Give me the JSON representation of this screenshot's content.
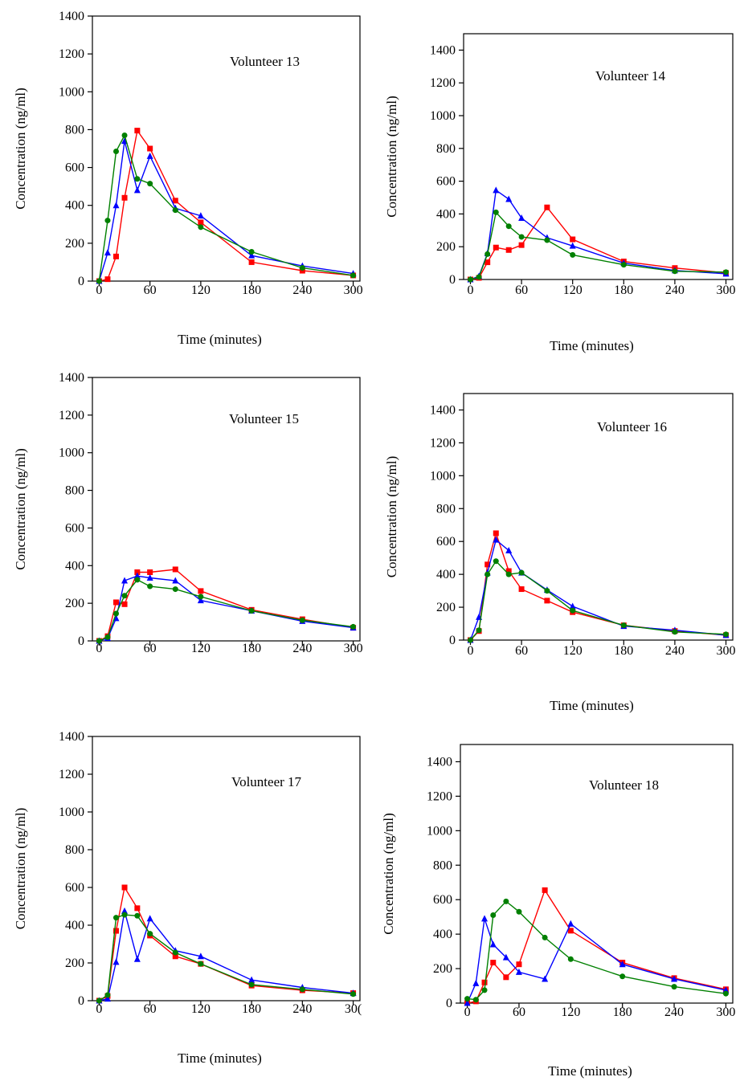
{
  "chart_data": [
    {
      "type": "line",
      "title": "Volunteer 13",
      "xlabel": "Time (minutes)",
      "ylabel": "Concentration (ng/ml)",
      "x_ticks": [
        "0",
        "60",
        "120",
        "180",
        "240",
        "300"
      ],
      "y_ticks": [
        "0",
        "200",
        "400",
        "600",
        "800",
        "1000",
        "1200",
        "1400"
      ],
      "xlim": [
        -8,
        308
      ],
      "ylim": [
        0,
        1400
      ],
      "series": [
        {
          "color": "#ff0000",
          "marker": "square",
          "x": [
            0,
            10,
            20,
            30,
            45,
            60,
            90,
            120,
            180,
            240,
            300
          ],
          "y": [
            0,
            10,
            130,
            440,
            795,
            700,
            425,
            310,
            100,
            55,
            30
          ]
        },
        {
          "color": "#0000ff",
          "marker": "triangle",
          "x": [
            0,
            10,
            20,
            30,
            45,
            60,
            90,
            120,
            180,
            240,
            300
          ],
          "y": [
            0,
            150,
            400,
            740,
            480,
            660,
            385,
            345,
            135,
            80,
            40
          ]
        },
        {
          "color": "#008000",
          "marker": "circle",
          "x": [
            0,
            10,
            20,
            30,
            45,
            60,
            90,
            120,
            180,
            240,
            300
          ],
          "y": [
            0,
            320,
            685,
            770,
            540,
            515,
            375,
            285,
            155,
            70,
            30
          ]
        }
      ]
    },
    {
      "type": "line",
      "title": "Volunteer 14",
      "xlabel": "Time (minutes)",
      "ylabel": "Concentration (ng/ml)",
      "x_ticks": [
        "0",
        "60",
        "120",
        "180",
        "240",
        "300"
      ],
      "y_ticks": [
        "0",
        "200",
        "400",
        "600",
        "800",
        "1000",
        "1200",
        "1400"
      ],
      "xlim": [
        -8,
        308
      ],
      "ylim": [
        0,
        1500
      ],
      "series": [
        {
          "color": "#ff0000",
          "marker": "square",
          "x": [
            0,
            10,
            20,
            30,
            45,
            60,
            90,
            120,
            180,
            240,
            300
          ],
          "y": [
            0,
            10,
            105,
            195,
            180,
            210,
            440,
            245,
            110,
            70,
            40
          ]
        },
        {
          "color": "#0000ff",
          "marker": "triangle",
          "x": [
            0,
            10,
            20,
            30,
            45,
            60,
            90,
            120,
            180,
            240,
            300
          ],
          "y": [
            0,
            20,
            160,
            545,
            490,
            375,
            255,
            205,
            100,
            55,
            35
          ]
        },
        {
          "color": "#008000",
          "marker": "circle",
          "x": [
            0,
            10,
            20,
            30,
            45,
            60,
            90,
            120,
            180,
            240,
            300
          ],
          "y": [
            0,
            15,
            155,
            410,
            325,
            260,
            240,
            150,
            90,
            50,
            45
          ]
        }
      ]
    },
    {
      "type": "line",
      "title": "Volunteer 15",
      "xlabel": "",
      "ylabel": "Concentration (ng/ml)",
      "x_ticks": [
        "0",
        "60",
        "120",
        "180",
        "240",
        "300"
      ],
      "y_ticks": [
        "0",
        "200",
        "400",
        "600",
        "800",
        "1000",
        "1200",
        "1400"
      ],
      "xlim": [
        -8,
        308
      ],
      "ylim": [
        0,
        1400
      ],
      "series": [
        {
          "color": "#ff0000",
          "marker": "square",
          "x": [
            0,
            10,
            20,
            30,
            45,
            60,
            90,
            120,
            180,
            240,
            300
          ],
          "y": [
            0,
            25,
            205,
            195,
            365,
            365,
            380,
            265,
            165,
            115,
            70
          ]
        },
        {
          "color": "#0000ff",
          "marker": "triangle",
          "x": [
            0,
            10,
            20,
            30,
            45,
            60,
            90,
            120,
            180,
            240,
            300
          ],
          "y": [
            0,
            15,
            120,
            320,
            345,
            335,
            320,
            215,
            160,
            105,
            70
          ]
        },
        {
          "color": "#008000",
          "marker": "circle",
          "x": [
            0,
            10,
            20,
            30,
            45,
            60,
            90,
            120,
            180,
            240,
            300
          ],
          "y": [
            0,
            20,
            145,
            240,
            325,
            290,
            275,
            235,
            160,
            110,
            75
          ]
        }
      ]
    },
    {
      "type": "line",
      "title": "Volunteer 16",
      "xlabel": "Time (minutes)",
      "ylabel": "Concentration (ng/ml)",
      "x_ticks": [
        "0",
        "60",
        "120",
        "180",
        "240",
        "300"
      ],
      "y_ticks": [
        "0",
        "200",
        "400",
        "600",
        "800",
        "1000",
        "1200",
        "1400"
      ],
      "xlim": [
        -8,
        308
      ],
      "ylim": [
        0,
        1500
      ],
      "series": [
        {
          "color": "#ff0000",
          "marker": "square",
          "x": [
            0,
            10,
            20,
            30,
            45,
            60,
            90,
            120,
            180,
            240,
            300
          ],
          "y": [
            0,
            55,
            460,
            650,
            420,
            310,
            240,
            170,
            90,
            55,
            30
          ]
        },
        {
          "color": "#0000ff",
          "marker": "triangle",
          "x": [
            0,
            10,
            20,
            30,
            45,
            60,
            90,
            120,
            180,
            240,
            300
          ],
          "y": [
            0,
            140,
            410,
            610,
            545,
            410,
            305,
            205,
            85,
            60,
            30
          ]
        },
        {
          "color": "#008000",
          "marker": "circle",
          "x": [
            0,
            10,
            20,
            30,
            45,
            60,
            90,
            120,
            180,
            240,
            300
          ],
          "y": [
            0,
            60,
            400,
            480,
            400,
            410,
            300,
            180,
            90,
            50,
            35
          ]
        }
      ]
    },
    {
      "type": "line",
      "title": "Volunteer 17",
      "xlabel": "Time (minutes)",
      "ylabel": "Concentration (ng/ml)",
      "x_ticks": [
        "0",
        "60",
        "120",
        "180",
        "240",
        "30("
      ],
      "y_ticks": [
        "0",
        "200",
        "400",
        "600",
        "800",
        "1000",
        "1200",
        "1400"
      ],
      "xlim": [
        -8,
        308
      ],
      "ylim": [
        0,
        1400
      ],
      "series": [
        {
          "color": "#ff0000",
          "marker": "square",
          "x": [
            0,
            10,
            20,
            30,
            45,
            60,
            90,
            120,
            180,
            240,
            300
          ],
          "y": [
            0,
            25,
            370,
            600,
            490,
            345,
            235,
            195,
            80,
            55,
            40
          ]
        },
        {
          "color": "#0000ff",
          "marker": "triangle",
          "x": [
            0,
            10,
            20,
            30,
            45,
            60,
            90,
            120,
            180,
            240,
            300
          ],
          "y": [
            0,
            10,
            205,
            475,
            220,
            435,
            265,
            235,
            110,
            70,
            40
          ]
        },
        {
          "color": "#008000",
          "marker": "circle",
          "x": [
            0,
            10,
            20,
            30,
            45,
            60,
            90,
            120,
            180,
            240,
            300
          ],
          "y": [
            0,
            30,
            440,
            455,
            450,
            355,
            255,
            195,
            85,
            60,
            35
          ]
        }
      ]
    },
    {
      "type": "line",
      "title": "Volunteer 18",
      "xlabel": "Time (minutes)",
      "ylabel": "Concentration (ng/ml)",
      "x_ticks": [
        "0",
        "60",
        "120",
        "180",
        "240",
        "300"
      ],
      "y_ticks": [
        "0",
        "200",
        "400",
        "600",
        "800",
        "1000",
        "1200",
        "1400"
      ],
      "xlim": [
        -8,
        308
      ],
      "ylim": [
        0,
        1500
      ],
      "series": [
        {
          "color": "#ff0000",
          "marker": "square",
          "x": [
            0,
            10,
            20,
            30,
            45,
            60,
            90,
            120,
            180,
            240,
            300
          ],
          "y": [
            0,
            10,
            120,
            235,
            150,
            225,
            655,
            420,
            235,
            145,
            80
          ]
        },
        {
          "color": "#0000ff",
          "marker": "triangle",
          "x": [
            0,
            10,
            20,
            30,
            45,
            60,
            90,
            120,
            180,
            240,
            300
          ],
          "y": [
            0,
            115,
            490,
            340,
            265,
            180,
            140,
            460,
            225,
            140,
            75
          ]
        },
        {
          "color": "#008000",
          "marker": "circle",
          "x": [
            0,
            10,
            20,
            30,
            45,
            60,
            90,
            120,
            180,
            240,
            300
          ],
          "y": [
            25,
            20,
            75,
            510,
            590,
            530,
            380,
            255,
            155,
            95,
            55
          ]
        }
      ]
    }
  ]
}
